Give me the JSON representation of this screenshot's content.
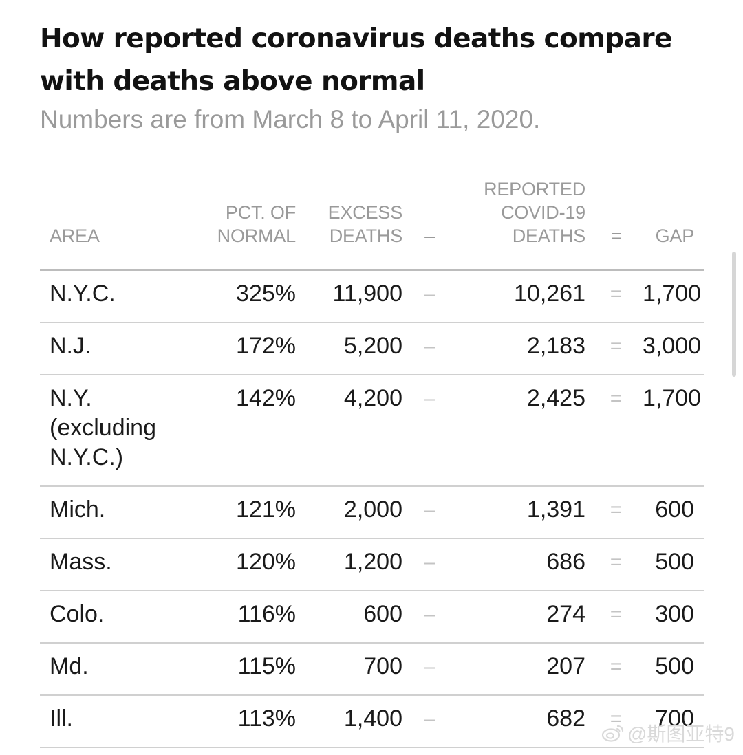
{
  "title": "How reported coronavirus deaths compare with deaths above normal",
  "subtitle": "Numbers are from March 8 to April 11, 2020.",
  "columns": {
    "area": "AREA",
    "pct": "PCT. OF NORMAL",
    "excess": "EXCESS DEATHS",
    "minus": "–",
    "reported": "REPORTED COVID-19 DEATHS",
    "eq": "=",
    "gap": "GAP"
  },
  "rows": [
    {
      "area": "N.Y.C.",
      "pct": "325%",
      "excess": "11,900",
      "minus": "–",
      "reported": "10,261",
      "eq": "=",
      "gap": "1,700"
    },
    {
      "area": "N.J.",
      "pct": "172%",
      "excess": "5,200",
      "minus": "–",
      "reported": "2,183",
      "eq": "=",
      "gap": "3,000"
    },
    {
      "area": "N.Y. (excluding N.Y.C.)",
      "pct": "142%",
      "excess": "4,200",
      "minus": "–",
      "reported": "2,425",
      "eq": "=",
      "gap": "1,700"
    },
    {
      "area": "Mich.",
      "pct": "121%",
      "excess": "2,000",
      "minus": "–",
      "reported": "1,391",
      "eq": "=",
      "gap": "600"
    },
    {
      "area": "Mass.",
      "pct": "120%",
      "excess": "1,200",
      "minus": "–",
      "reported": "686",
      "eq": "=",
      "gap": "500"
    },
    {
      "area": "Colo.",
      "pct": "116%",
      "excess": "600",
      "minus": "–",
      "reported": "274",
      "eq": "=",
      "gap": "300"
    },
    {
      "area": "Md.",
      "pct": "115%",
      "excess": "700",
      "minus": "–",
      "reported": "207",
      "eq": "=",
      "gap": "500"
    },
    {
      "area": "Ill.",
      "pct": "113%",
      "excess": "1,400",
      "minus": "–",
      "reported": "682",
      "eq": "=",
      "gap": "700"
    }
  ],
  "watermark": "@斯图亚特9",
  "colors": {
    "title": "#121212",
    "subtitle": "#9a9a9a",
    "header_text": "#9a9a9a",
    "operator": "#c4c4c4",
    "rule": "#d0d0d0"
  },
  "chart_data": {
    "type": "table",
    "title": "How reported coronavirus deaths compare with deaths above normal",
    "subtitle": "Numbers are from March 8 to April 11, 2020.",
    "columns": [
      "AREA",
      "PCT. OF NORMAL",
      "EXCESS DEATHS",
      "REPORTED COVID-19 DEATHS",
      "GAP"
    ],
    "rows": [
      [
        "N.Y.C.",
        325,
        11900,
        10261,
        1700
      ],
      [
        "N.J.",
        172,
        5200,
        2183,
        3000
      ],
      [
        "N.Y. (excluding N.Y.C.)",
        142,
        4200,
        2425,
        1700
      ],
      [
        "Mich.",
        121,
        2000,
        1391,
        600
      ],
      [
        "Mass.",
        120,
        1200,
        686,
        500
      ],
      [
        "Colo.",
        116,
        600,
        274,
        300
      ],
      [
        "Md.",
        115,
        700,
        207,
        500
      ],
      [
        "Ill.",
        113,
        1400,
        682,
        700
      ]
    ]
  }
}
